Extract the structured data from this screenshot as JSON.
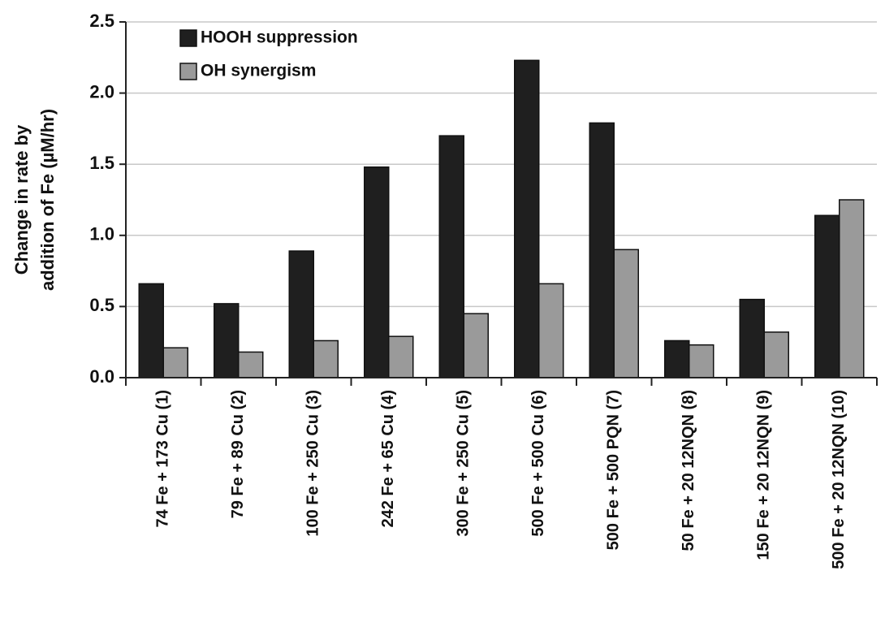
{
  "chart_data": {
    "type": "bar",
    "ylabel": [
      "Change in rate by",
      "addition of Fe (µM/hr)"
    ],
    "categories": [
      "74 Fe + 173 Cu (1)",
      "79 Fe + 89 Cu (2)",
      "100 Fe + 250 Cu (3)",
      "242 Fe + 65 Cu (4)",
      "300 Fe + 250 Cu (5)",
      "500 Fe + 500 Cu (6)",
      "500 Fe + 500 PQN (7)",
      "50 Fe + 20 12NQN (8)",
      "150 Fe + 20 12NQN (9)",
      "500 Fe + 20 12NQN (10)"
    ],
    "series": [
      {
        "name": "HOOH suppression",
        "color": "#1f1f1f",
        "values": [
          0.66,
          0.52,
          0.89,
          1.48,
          1.7,
          2.23,
          1.79,
          0.26,
          0.55,
          1.14
        ]
      },
      {
        "name": "OH synergism",
        "color": "#9a9a9a",
        "values": [
          0.21,
          0.18,
          0.26,
          0.29,
          0.45,
          0.66,
          0.9,
          0.23,
          0.32,
          1.25
        ]
      }
    ],
    "ylim": [
      0,
      2.5
    ],
    "yticks": [
      {
        "value": 0,
        "label": "0.0"
      },
      0.5,
      {
        "value": 1,
        "label": "1.0"
      },
      1.5,
      {
        "value": 2,
        "label": "2.0"
      },
      2.5
    ],
    "grid": true,
    "legend": "upper left"
  }
}
